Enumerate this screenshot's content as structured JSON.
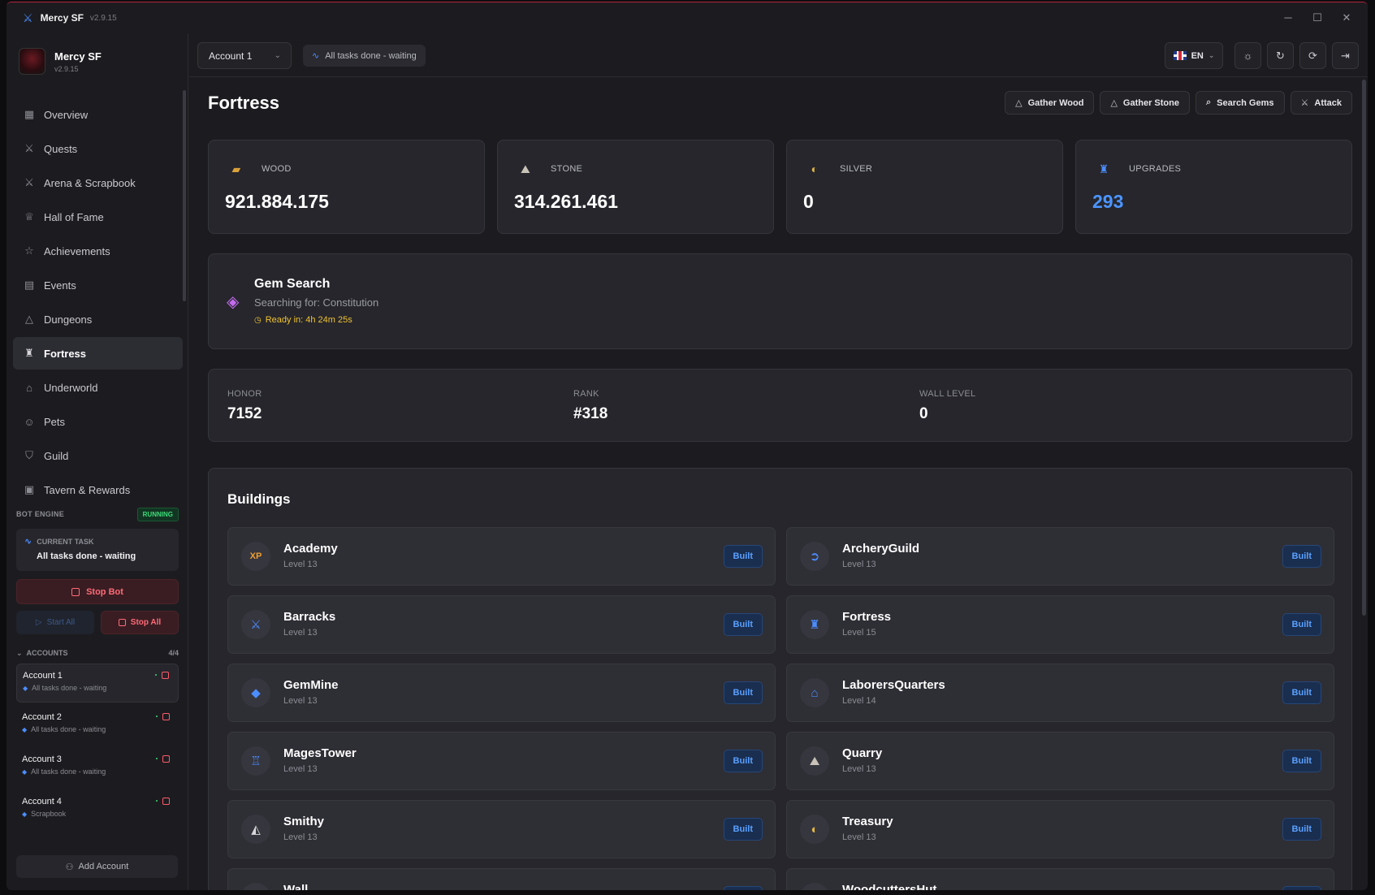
{
  "window": {
    "title": "Mercy SF",
    "version": "v2.9.15"
  },
  "sidebar": {
    "brand_name": "Mercy SF",
    "brand_version": "v2.9.15",
    "items": [
      {
        "label": "Overview",
        "icon": "grid-icon",
        "glyph": "▦"
      },
      {
        "label": "Quests",
        "icon": "swords-icon",
        "glyph": "⚔"
      },
      {
        "label": "Arena & Scrapbook",
        "icon": "swords-icon",
        "glyph": "⚔"
      },
      {
        "label": "Hall of Fame",
        "icon": "trophy-icon",
        "glyph": "♕"
      },
      {
        "label": "Achievements",
        "icon": "award-icon",
        "glyph": "☆"
      },
      {
        "label": "Events",
        "icon": "calendar-icon",
        "glyph": "▤"
      },
      {
        "label": "Dungeons",
        "icon": "mountain-icon",
        "glyph": "△"
      },
      {
        "label": "Fortress",
        "icon": "castle-icon",
        "glyph": "♜"
      },
      {
        "label": "Underworld",
        "icon": "home-icon",
        "glyph": "⌂"
      },
      {
        "label": "Pets",
        "icon": "cat-icon",
        "glyph": "☺"
      },
      {
        "label": "Guild",
        "icon": "shield-icon",
        "glyph": "⛉"
      },
      {
        "label": "Tavern & Rewards",
        "icon": "gift-icon",
        "glyph": "▣"
      }
    ],
    "active_index": 7,
    "engine_label": "BOT ENGINE",
    "engine_status": "RUNNING",
    "current_task_label": "CURRENT TASK",
    "current_task_value": "All tasks done - waiting",
    "stop_bot": "Stop Bot",
    "start_all": "Start All",
    "stop_all": "Stop All",
    "accounts_label": "ACCOUNTS",
    "accounts_count": "4/4",
    "accounts": [
      {
        "name": "Account 1",
        "status": "All tasks done - waiting"
      },
      {
        "name": "Account 2",
        "status": "All tasks done - waiting"
      },
      {
        "name": "Account 3",
        "status": "All tasks done - waiting"
      },
      {
        "name": "Account 4",
        "status": "Scrapbook"
      }
    ],
    "add_account": "Add Account"
  },
  "topbar": {
    "account_select": "Account 1",
    "status": "All tasks done - waiting",
    "language": "EN"
  },
  "page": {
    "title": "Fortress",
    "actions": [
      {
        "label": "Gather Wood",
        "glyph": "△"
      },
      {
        "label": "Gather Stone",
        "glyph": "△"
      },
      {
        "label": "Search Gems",
        "glyph": "⌕"
      },
      {
        "label": "Attack",
        "glyph": "⚔"
      }
    ],
    "resources": [
      {
        "label": "WOOD",
        "value": "921.884.175",
        "glyph": "▰",
        "color": "#d9a13a"
      },
      {
        "label": "STONE",
        "value": "314.261.461",
        "glyph": "⛰",
        "color": "#c8c2b8"
      },
      {
        "label": "SILVER",
        "value": "0",
        "glyph": "◐",
        "color": "#e0b54a"
      },
      {
        "label": "UPGRADES",
        "value": "293",
        "glyph": "♜",
        "color": "#4c8dff"
      }
    ],
    "gem_search": {
      "title": "Gem Search",
      "subtitle": "Searching for: Constitution",
      "ready": "Ready in: 4h 24m 25s"
    },
    "stats": [
      {
        "label": "HONOR",
        "value": "7152"
      },
      {
        "label": "RANK",
        "value": "#318"
      },
      {
        "label": "WALL LEVEL",
        "value": "0"
      }
    ],
    "buildings_title": "Buildings",
    "built_label": "Built",
    "buildings": [
      {
        "name": "Academy",
        "level": "Level 13",
        "glyph": "XP",
        "color": "#f0a030"
      },
      {
        "name": "ArcheryGuild",
        "level": "Level 13",
        "glyph": "➲",
        "color": "#4c8dff"
      },
      {
        "name": "Barracks",
        "level": "Level 13",
        "glyph": "⚔",
        "color": "#4c8dff"
      },
      {
        "name": "Fortress",
        "level": "Level 15",
        "glyph": "♜",
        "color": "#4c8dff"
      },
      {
        "name": "GemMine",
        "level": "Level 13",
        "glyph": "◆",
        "color": "#4c8dff"
      },
      {
        "name": "LaborersQuarters",
        "level": "Level 14",
        "glyph": "⌂",
        "color": "#4c8dff"
      },
      {
        "name": "MagesTower",
        "level": "Level 13",
        "glyph": "♖",
        "color": "#4c8dff"
      },
      {
        "name": "Quarry",
        "level": "Level 13",
        "glyph": "⛰",
        "color": "#c8c2b8"
      },
      {
        "name": "Smithy",
        "level": "Level 13",
        "glyph": "◭",
        "color": "#d8d8dc"
      },
      {
        "name": "Treasury",
        "level": "Level 13",
        "glyph": "◐",
        "color": "#e0b54a"
      },
      {
        "name": "Wall",
        "level": "",
        "glyph": "⛉",
        "color": "#4c8dff"
      },
      {
        "name": "WoodcuttersHut",
        "level": "",
        "glyph": "▰",
        "color": "#d9a13a"
      }
    ]
  }
}
